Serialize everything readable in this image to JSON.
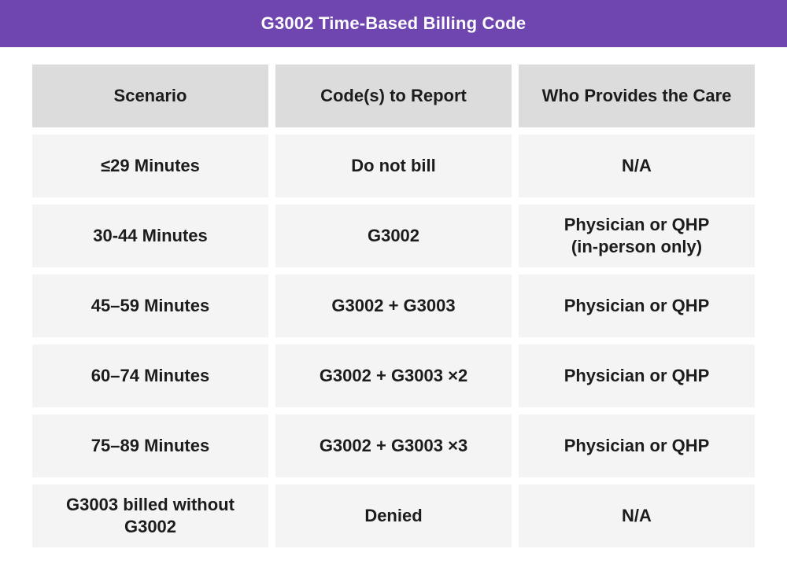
{
  "title": "G3002 Time-Based Billing Code",
  "table": {
    "headers": [
      "Scenario",
      "Code(s) to Report",
      "Who Provides the Care"
    ],
    "rows": [
      [
        "≤29 Minutes",
        "Do not bill",
        "N/A"
      ],
      [
        "30-44 Minutes",
        "G3002",
        "Physician or QHP (in-person only)"
      ],
      [
        "45–59 Minutes",
        "G3002 + G3003",
        "Physician or QHP"
      ],
      [
        "60–74 Minutes",
        "G3002 + G3003 ×2",
        "Physician or QHP"
      ],
      [
        "75–89 Minutes",
        "G3002 + G3003 ×3",
        "Physician or QHP"
      ],
      [
        "G3003 billed without G3002",
        "Denied",
        "N/A"
      ]
    ]
  },
  "colors": {
    "title_bar": "#6f45b0",
    "header_cell": "#dcdcdc",
    "body_cell": "#f4f4f4",
    "text": "#1c1c1c"
  }
}
